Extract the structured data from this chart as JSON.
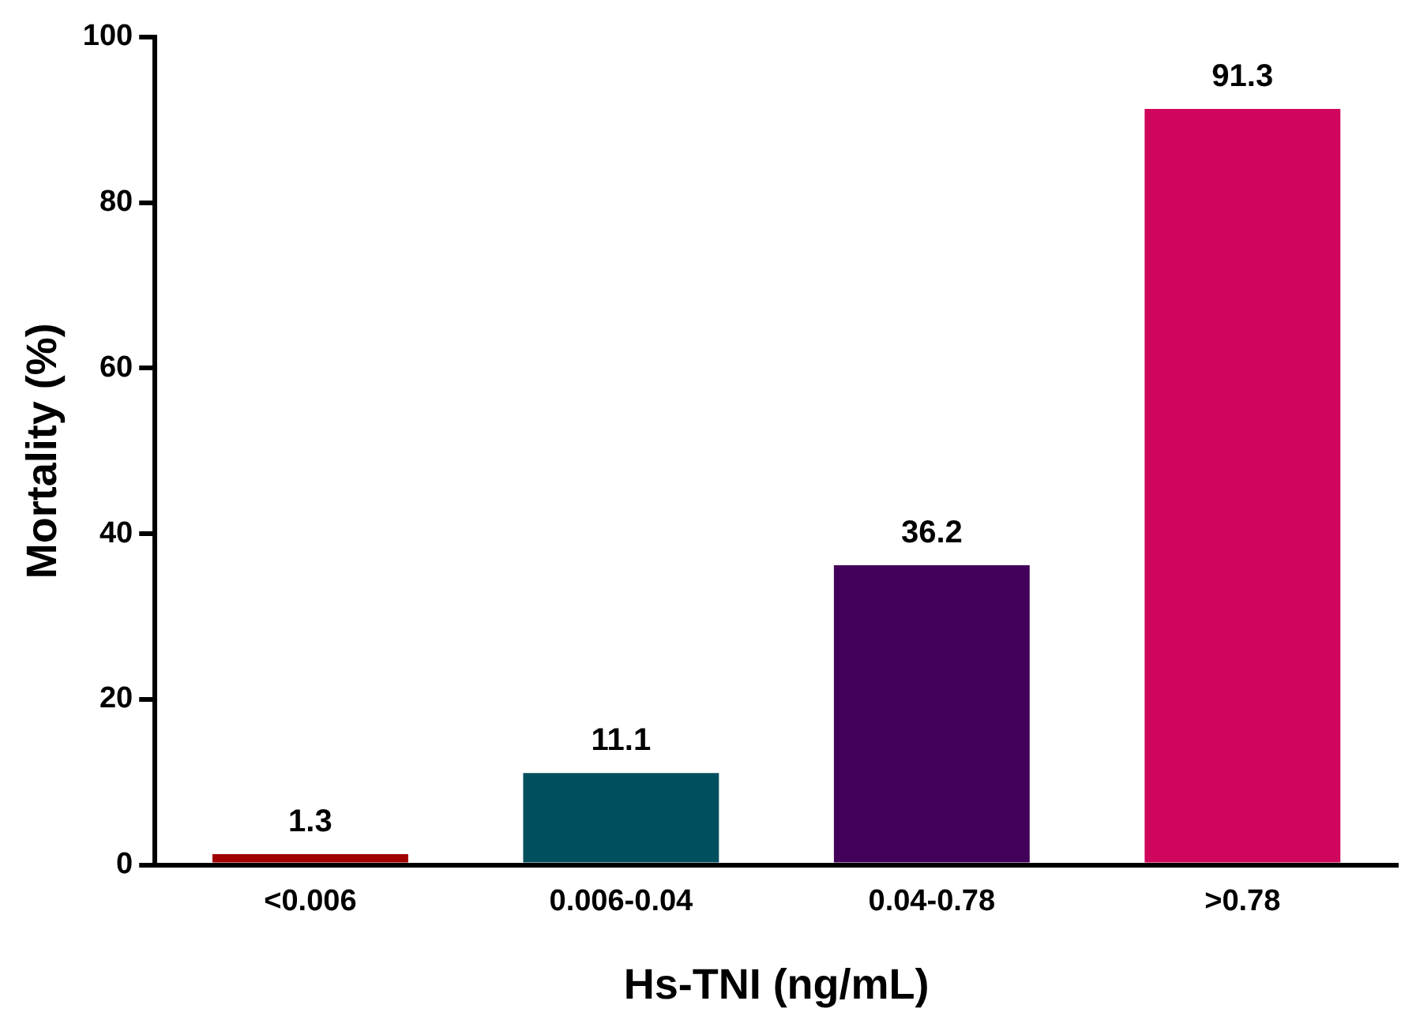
{
  "chart_data": {
    "type": "bar",
    "xlabel": "Hs-TNI (ng/mL)",
    "ylabel": "Mortality (%)",
    "categories": [
      "<0.006",
      "0.006-0.04",
      "0.04-0.78",
      ">0.78"
    ],
    "values": [
      1.3,
      11.1,
      36.2,
      91.3
    ],
    "colors": [
      "#a00000",
      "#004f5e",
      "#43005a",
      "#d0065d"
    ],
    "ylim": [
      0,
      100
    ],
    "yticks": [
      0,
      20,
      40,
      60,
      80,
      100
    ],
    "data_labels": true
  }
}
